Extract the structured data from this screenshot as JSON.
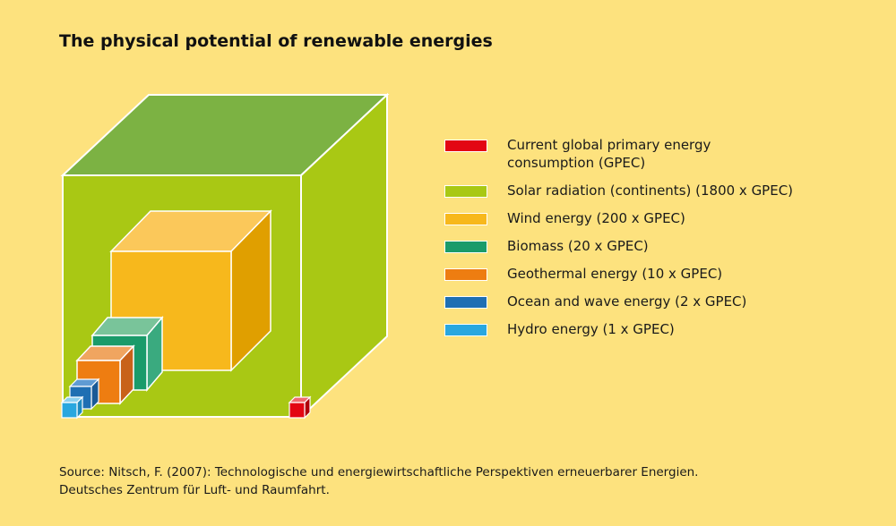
{
  "title": "The physical potential of renewable energies",
  "legend": [
    {
      "lines": [
        "Current global primary energy",
        "consumption (GPEC)"
      ],
      "color": "#e30613"
    },
    {
      "lines": [
        "Solar radiation (continents)  (1800 x GPEC)"
      ],
      "color": "#a9c814"
    },
    {
      "lines": [
        "Wind energy (200 x GPEC)"
      ],
      "color": "#f7b81c"
    },
    {
      "lines": [
        "Biomass (20 x GPEC)"
      ],
      "color": "#1a9b6a"
    },
    {
      "lines": [
        "Geothermal energy (10 x GPEC)"
      ],
      "color": "#ee7d11"
    },
    {
      "lines": [
        "Ocean and wave energy (2 x GPEC)"
      ],
      "color": "#1f6fb3"
    },
    {
      "lines": [
        "Hydro energy (1 x GPEC)"
      ],
      "color": "#29a7df"
    }
  ],
  "source": [
    "Source: Nitsch, F. (2007): Technologische und energiewirtschaftliche Perspektiven erneuerbarer Energien.",
    "Deutsches Zentrum für Luft- und Raumfahrt."
  ],
  "colors": {
    "background": "#fde27e",
    "solar_top": "#7cb243",
    "solar_front": "#a9c814",
    "wind_front": "#f7b81c",
    "wind_top": "#fbc85a",
    "wind_side": "#e09f00",
    "biomass_front": "#1a9b6a",
    "biomass_top": "#79c49a",
    "biomass_side": "#3aaa7f",
    "geo_front": "#ee7d11",
    "geo_top": "#f0a560",
    "geo_side": "#c8621a",
    "ocean_front": "#1f6fb3",
    "ocean_top": "#5f9bd3",
    "ocean_side": "#1a5a96",
    "hydro_front": "#29a7df",
    "hydro_top": "#8cd0ef",
    "hydro_side": "#1f8cc0",
    "gpec_front": "#e30613",
    "gpec_top": "#f06a6f",
    "gpec_side": "#b0000b"
  }
}
